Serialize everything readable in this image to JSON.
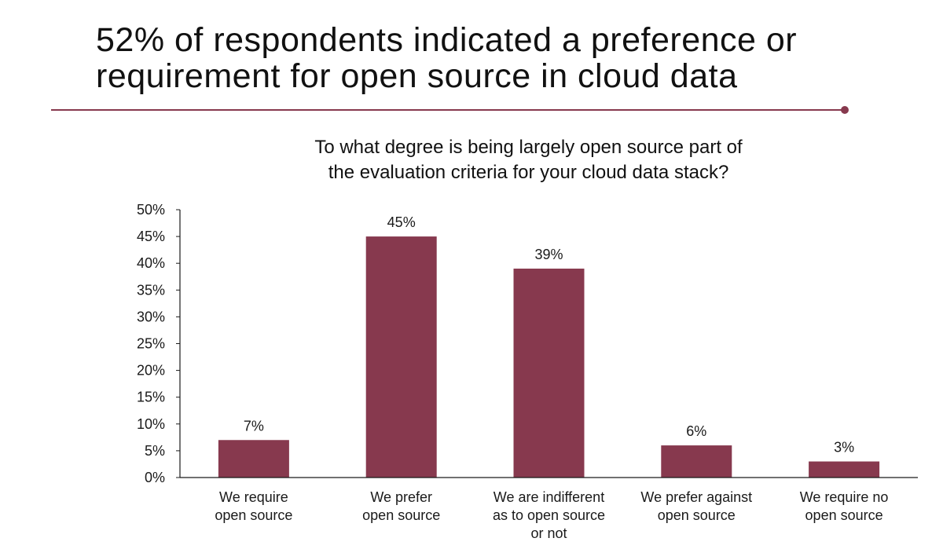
{
  "slide": {
    "title_lines": [
      "52% of respondents indicated a preference or",
      "requirement for open source in cloud data"
    ]
  },
  "colors": {
    "accent": "#87394e",
    "bar": "#87394e",
    "axis": "#1a1a1a"
  },
  "chart_data": {
    "type": "bar",
    "title_lines": [
      "To what degree is being largely open source part of",
      "the evaluation criteria for your cloud data stack?"
    ],
    "categories": [
      "We require open source",
      "We prefer open source",
      "We are indifferent as to open source or not",
      "We prefer against open source",
      "We require no open source"
    ],
    "category_label_lines": [
      [
        "We require",
        "open source"
      ],
      [
        "We prefer",
        "open source"
      ],
      [
        "We are indifferent",
        "as to open source",
        "or not"
      ],
      [
        "We prefer against",
        "open source"
      ],
      [
        "We require no",
        "open source"
      ]
    ],
    "values": [
      7,
      45,
      39,
      6,
      3
    ],
    "data_labels": [
      "7%",
      "45%",
      "39%",
      "6%",
      "3%"
    ],
    "ylim": [
      0,
      50
    ],
    "yticks": [
      0,
      5,
      10,
      15,
      20,
      25,
      30,
      35,
      40,
      45,
      50
    ],
    "ytick_labels": [
      "0%",
      "5%",
      "10%",
      "15%",
      "20%",
      "25%",
      "30%",
      "35%",
      "40%",
      "45%",
      "50%"
    ],
    "xlabel": "",
    "ylabel": "",
    "grid": false,
    "legend": "none"
  }
}
